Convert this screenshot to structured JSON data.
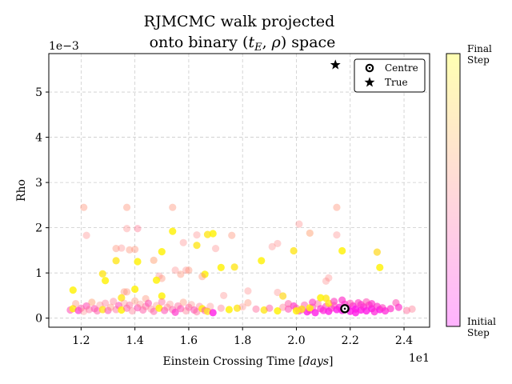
{
  "chart_data": {
    "type": "scatter",
    "title_line1": "RJMCMC walk projected",
    "title_line2_prefix": "onto binary (",
    "title_line2_t": "t",
    "title_line2_sub": "E",
    "title_line2_mid": ", ",
    "title_line2_rho": "ρ",
    "title_line2_suffix": ") space",
    "xlabel_text": "Einstein Crossing Time [",
    "xlabel_unit": "days",
    "xlabel_end": "]",
    "ylabel": "Rho",
    "x_offset_label": "1e1",
    "y_offset_label": "1e−3",
    "xlim": [
      1.08,
      2.495
    ],
    "ylim": [
      -0.2,
      5.85
    ],
    "x_ticks": [
      1.2,
      1.4,
      1.6,
      1.8,
      2.0,
      2.2,
      2.4
    ],
    "x_tick_labels": [
      "1.2",
      "1.4",
      "1.6",
      "1.8",
      "2.0",
      "2.2",
      "2.4"
    ],
    "y_ticks": [
      0,
      1,
      2,
      3,
      4,
      5
    ],
    "y_tick_labels": [
      "0",
      "1",
      "2",
      "3",
      "4",
      "5"
    ],
    "grid": true,
    "legend": {
      "position": "top-right",
      "centre_label": "Centre",
      "true_label": "True"
    },
    "centre": {
      "x": 2.18,
      "y": 0.21
    },
    "true": {
      "x": 2.145,
      "y": 5.6
    },
    "colorbar": {
      "top_label_1": "Final",
      "top_label_2": "Step",
      "bottom_label_1": "Initial",
      "bottom_label_2": "Step",
      "colormap": [
        "#ff00ff",
        "#ff8080",
        "#ffff00"
      ]
    },
    "points": [
      [
        1.21,
        2.45,
        0.55
      ],
      [
        1.22,
        1.83,
        0.5
      ],
      [
        1.37,
        2.45,
        0.55
      ],
      [
        1.54,
        2.45,
        0.55
      ],
      [
        2.15,
        2.45,
        0.55
      ],
      [
        1.41,
        1.98,
        0.45
      ],
      [
        1.37,
        1.98,
        0.5
      ],
      [
        2.01,
        2.08,
        0.5
      ],
      [
        2.05,
        1.88,
        0.6
      ],
      [
        2.15,
        1.84,
        0.5
      ],
      [
        1.63,
        1.84,
        0.5
      ],
      [
        1.58,
        1.67,
        0.5
      ],
      [
        1.67,
        1.85,
        0.9
      ],
      [
        1.69,
        1.87,
        0.95
      ],
      [
        1.76,
        1.83,
        0.55
      ],
      [
        1.54,
        1.92,
        0.95
      ],
      [
        1.93,
        1.65,
        0.5
      ],
      [
        1.91,
        1.58,
        0.5
      ],
      [
        1.99,
        1.49,
        0.9
      ],
      [
        2.17,
        1.49,
        0.95
      ],
      [
        2.3,
        1.46,
        0.85
      ],
      [
        1.33,
        1.54,
        0.55
      ],
      [
        1.35,
        1.55,
        0.5
      ],
      [
        1.38,
        1.51,
        0.55
      ],
      [
        1.4,
        1.52,
        0.55
      ],
      [
        1.5,
        1.47,
        0.95
      ],
      [
        1.63,
        1.61,
        0.9
      ],
      [
        1.7,
        1.54,
        0.5
      ],
      [
        1.87,
        1.27,
        0.95
      ],
      [
        1.72,
        1.12,
        0.95
      ],
      [
        1.77,
        1.13,
        0.9
      ],
      [
        2.31,
        1.12,
        0.95
      ],
      [
        1.33,
        1.27,
        0.9
      ],
      [
        1.41,
        1.25,
        0.95
      ],
      [
        1.47,
        1.28,
        0.6
      ],
      [
        1.28,
        0.98,
        0.9
      ],
      [
        1.29,
        0.83,
        0.95
      ],
      [
        1.49,
        0.93,
        0.5
      ],
      [
        1.5,
        0.88,
        0.55
      ],
      [
        1.55,
        1.06,
        0.5
      ],
      [
        1.57,
        0.97,
        0.55
      ],
      [
        1.59,
        1.06,
        0.5
      ],
      [
        1.6,
        1.06,
        0.55
      ],
      [
        1.66,
        0.97,
        0.95
      ],
      [
        1.65,
        0.92,
        0.55
      ],
      [
        1.48,
        0.84,
        0.95
      ],
      [
        2.11,
        0.82,
        0.5
      ],
      [
        2.12,
        0.89,
        0.5
      ],
      [
        1.17,
        0.62,
        0.95
      ],
      [
        1.36,
        0.58,
        0.55
      ],
      [
        1.37,
        0.58,
        0.55
      ],
      [
        1.4,
        0.64,
        0.95
      ],
      [
        1.82,
        0.6,
        0.5
      ],
      [
        1.93,
        0.57,
        0.5
      ],
      [
        1.95,
        0.49,
        0.85
      ],
      [
        1.73,
        0.5,
        0.5
      ],
      [
        1.5,
        0.49,
        0.95
      ],
      [
        1.44,
        0.43,
        0.55
      ],
      [
        1.35,
        0.45,
        0.9
      ],
      [
        1.16,
        0.18,
        0.3
      ],
      [
        1.17,
        0.21,
        0.95
      ],
      [
        1.18,
        0.32,
        0.55
      ],
      [
        1.19,
        0.17,
        0.2
      ],
      [
        1.2,
        0.22,
        0.35
      ],
      [
        1.21,
        0.15,
        0.5
      ],
      [
        1.22,
        0.27,
        0.3
      ],
      [
        1.23,
        0.19,
        0.4
      ],
      [
        1.24,
        0.35,
        0.6
      ],
      [
        1.25,
        0.21,
        0.3
      ],
      [
        1.26,
        0.16,
        0.35
      ],
      [
        1.27,
        0.29,
        0.5
      ],
      [
        1.28,
        0.19,
        0.9
      ],
      [
        1.29,
        0.33,
        0.45
      ],
      [
        1.3,
        0.17,
        0.3
      ],
      [
        1.31,
        0.24,
        0.55
      ],
      [
        1.32,
        0.37,
        0.45
      ],
      [
        1.33,
        0.19,
        0.4
      ],
      [
        1.34,
        0.28,
        0.3
      ],
      [
        1.35,
        0.18,
        0.95
      ],
      [
        1.36,
        0.33,
        0.5
      ],
      [
        1.37,
        0.22,
        0.35
      ],
      [
        1.38,
        0.29,
        0.4
      ],
      [
        1.39,
        0.16,
        0.45
      ],
      [
        1.4,
        0.38,
        0.55
      ],
      [
        1.41,
        0.23,
        0.3
      ],
      [
        1.42,
        0.31,
        0.5
      ],
      [
        1.43,
        0.18,
        0.35
      ],
      [
        1.44,
        0.26,
        0.4
      ],
      [
        1.45,
        0.33,
        0.3
      ],
      [
        1.46,
        0.2,
        0.45
      ],
      [
        1.47,
        0.15,
        0.35
      ],
      [
        1.48,
        0.28,
        0.5
      ],
      [
        1.49,
        0.22,
        0.95
      ],
      [
        1.5,
        0.36,
        0.4
      ],
      [
        1.51,
        0.17,
        0.3
      ],
      [
        1.52,
        0.24,
        0.45
      ],
      [
        1.53,
        0.31,
        0.5
      ],
      [
        1.54,
        0.19,
        0.35
      ],
      [
        1.55,
        0.13,
        0.2
      ],
      [
        1.56,
        0.27,
        0.4
      ],
      [
        1.57,
        0.21,
        0.3
      ],
      [
        1.58,
        0.35,
        0.55
      ],
      [
        1.59,
        0.16,
        0.45
      ],
      [
        1.6,
        0.24,
        0.35
      ],
      [
        1.61,
        0.3,
        0.5
      ],
      [
        1.62,
        0.18,
        0.3
      ],
      [
        1.63,
        0.14,
        0.4
      ],
      [
        1.64,
        0.26,
        0.45
      ],
      [
        1.65,
        0.21,
        0.95
      ],
      [
        1.66,
        0.17,
        0.3
      ],
      [
        1.67,
        0.15,
        0.9
      ],
      [
        1.68,
        0.26,
        0.5
      ],
      [
        1.69,
        0.12,
        0.1
      ],
      [
        1.72,
        0.22,
        0.45
      ],
      [
        1.75,
        0.19,
        0.95
      ],
      [
        1.78,
        0.22,
        0.9
      ],
      [
        1.8,
        0.25,
        0.5
      ],
      [
        1.82,
        0.34,
        0.55
      ],
      [
        1.85,
        0.2,
        0.4
      ],
      [
        1.88,
        0.18,
        0.9
      ],
      [
        1.9,
        0.22,
        0.35
      ],
      [
        1.93,
        0.16,
        0.95
      ],
      [
        1.95,
        0.24,
        0.45
      ],
      [
        1.97,
        0.2,
        0.3
      ],
      [
        1.99,
        0.27,
        0.2
      ],
      [
        2.0,
        0.22,
        0.35
      ],
      [
        2.01,
        0.16,
        0.25
      ],
      [
        2.02,
        0.19,
        0.3
      ],
      [
        2.03,
        0.29,
        0.35
      ],
      [
        2.04,
        0.14,
        0.1
      ],
      [
        2.05,
        0.18,
        0.2
      ],
      [
        2.06,
        0.24,
        0.3
      ],
      [
        2.07,
        0.12,
        0.1
      ],
      [
        2.08,
        0.32,
        0.4
      ],
      [
        2.09,
        0.21,
        0.2
      ],
      [
        2.1,
        0.17,
        0.15
      ],
      [
        2.11,
        0.44,
        0.9
      ],
      [
        2.11,
        0.26,
        0.25
      ],
      [
        2.12,
        0.15,
        0.1
      ],
      [
        2.13,
        0.22,
        0.2
      ],
      [
        2.14,
        0.28,
        0.3
      ],
      [
        2.15,
        0.19,
        0.1
      ],
      [
        2.16,
        0.24,
        0.15
      ],
      [
        2.17,
        0.17,
        0.1
      ],
      [
        2.18,
        0.31,
        0.2
      ],
      [
        2.19,
        0.22,
        0.1
      ],
      [
        2.2,
        0.15,
        0.1
      ],
      [
        2.21,
        0.27,
        0.15
      ],
      [
        2.22,
        0.2,
        0.1
      ],
      [
        2.23,
        0.34,
        0.25
      ],
      [
        2.24,
        0.18,
        0.1
      ],
      [
        2.25,
        0.25,
        0.15
      ],
      [
        2.26,
        0.16,
        0.1
      ],
      [
        2.27,
        0.29,
        0.2
      ],
      [
        2.28,
        0.21,
        0.1
      ],
      [
        2.29,
        0.14,
        0.15
      ],
      [
        2.3,
        0.26,
        0.2
      ],
      [
        2.31,
        0.19,
        0.1
      ],
      [
        2.32,
        0.23,
        0.25
      ],
      [
        2.33,
        0.16,
        0.15
      ],
      [
        2.35,
        0.21,
        0.2
      ],
      [
        2.37,
        0.34,
        0.3
      ],
      [
        2.38,
        0.24,
        0.2
      ],
      [
        2.41,
        0.17,
        0.4
      ],
      [
        2.43,
        0.2,
        0.45
      ],
      [
        2.0,
        0.16,
        0.95
      ],
      [
        2.02,
        0.2,
        0.9
      ],
      [
        2.05,
        0.23,
        0.95
      ],
      [
        2.12,
        0.33,
        0.9
      ],
      [
        2.09,
        0.45,
        0.95
      ],
      [
        2.24,
        0.3,
        0.2
      ],
      [
        2.26,
        0.36,
        0.3
      ],
      [
        2.14,
        0.37,
        0.25
      ],
      [
        2.2,
        0.33,
        0.3
      ],
      [
        1.97,
        0.32,
        0.35
      ],
      [
        2.06,
        0.35,
        0.25
      ],
      [
        2.17,
        0.4,
        0.2
      ],
      [
        2.22,
        0.12,
        0.1
      ],
      [
        2.28,
        0.32,
        0.2
      ]
    ]
  }
}
